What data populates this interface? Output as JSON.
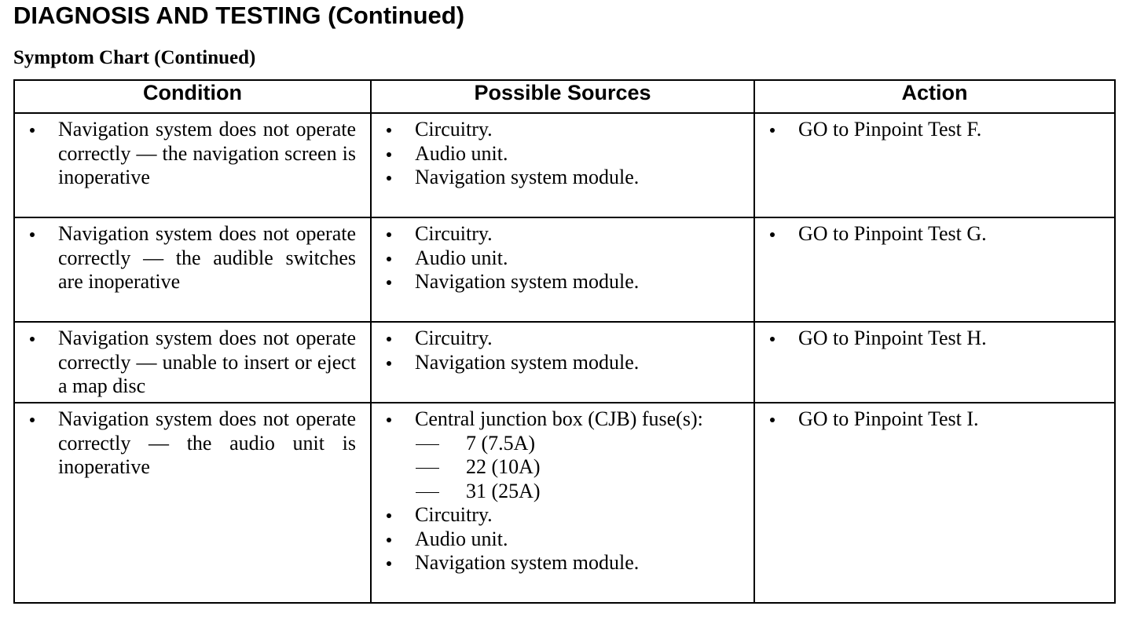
{
  "header": {
    "title": "DIAGNOSIS AND TESTING (Continued)",
    "subtitle": "Symptom Chart (Continued)"
  },
  "table": {
    "columns": [
      "Condition",
      "Possible Sources",
      "Action"
    ],
    "rows": [
      {
        "condition": "Navigation system does not operate correctly — the navigation screen is inoperative",
        "sources": [
          {
            "text": "Circuitry."
          },
          {
            "text": "Audio unit."
          },
          {
            "text": "Navigation system module."
          }
        ],
        "action": "GO to Pinpoint Test F."
      },
      {
        "condition": "Navigation system does not operate correctly — the audible switches are inoperative",
        "sources": [
          {
            "text": "Circuitry."
          },
          {
            "text": "Audio unit."
          },
          {
            "text": "Navigation system module."
          }
        ],
        "action": "GO to Pinpoint Test G."
      },
      {
        "condition": "Navigation system does not operate correctly — unable to insert or eject a map disc",
        "sources": [
          {
            "text": "Circuitry."
          },
          {
            "text": "Navigation system module."
          }
        ],
        "action": "GO to Pinpoint Test H."
      },
      {
        "condition": "Navigation system does not operate correctly — the audio unit is inoperative",
        "sources": [
          {
            "text": "Central junction box (CJB) fuse(s):",
            "items": [
              "7 (7.5A)",
              "22 (10A)",
              "31 (25A)"
            ]
          },
          {
            "text": "Circuitry."
          },
          {
            "text": "Audio unit."
          },
          {
            "text": "Navigation system module."
          }
        ],
        "action": "GO to Pinpoint Test I."
      }
    ]
  }
}
